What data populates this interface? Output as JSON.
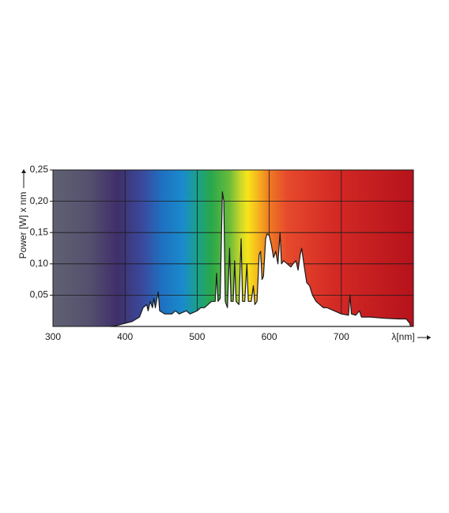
{
  "chart_data": {
    "type": "area",
    "y_label": "Power [W] x nm",
    "x_label": "λ[nm]",
    "xlim": [
      300,
      800
    ],
    "ylim": [
      0,
      0.25
    ],
    "xticks": [
      300,
      400,
      500,
      600,
      700
    ],
    "yticks": [
      {
        "value": 0.05,
        "label": "0,05"
      },
      {
        "value": 0.1,
        "label": "0,10"
      },
      {
        "value": 0.15,
        "label": "0,15"
      },
      {
        "value": 0.2,
        "label": "0,20"
      },
      {
        "value": 0.25,
        "label": "0,25"
      }
    ],
    "grid": true,
    "line_color": "#1a1a1a",
    "fill_color": "#ffffff",
    "x": [
      380,
      390,
      400,
      410,
      420,
      425,
      430,
      432,
      435,
      438,
      440,
      442,
      446,
      448,
      455,
      465,
      470,
      475,
      485,
      490,
      500,
      505,
      510,
      515,
      520,
      525,
      527,
      529,
      532,
      535,
      537,
      539,
      542,
      545,
      547,
      550,
      552,
      554,
      558,
      561,
      563,
      566,
      569,
      571,
      575,
      578,
      580,
      583,
      586,
      588,
      590,
      592,
      595,
      597,
      600,
      603,
      606,
      609,
      612,
      615,
      617,
      620,
      625,
      630,
      633,
      637,
      640,
      643,
      645,
      648,
      652,
      656,
      660,
      665,
      670,
      675,
      680,
      690,
      700,
      710,
      712,
      714,
      720,
      725,
      728,
      740,
      760,
      780,
      790,
      795,
      796
    ],
    "values": [
      0,
      0.002,
      0.005,
      0.008,
      0.015,
      0.03,
      0.035,
      0.025,
      0.04,
      0.03,
      0.045,
      0.03,
      0.055,
      0.025,
      0.02,
      0.02,
      0.025,
      0.02,
      0.025,
      0.02,
      0.025,
      0.03,
      0.03,
      0.035,
      0.04,
      0.04,
      0.085,
      0.04,
      0.045,
      0.215,
      0.2,
      0.04,
      0.03,
      0.125,
      0.04,
      0.04,
      0.105,
      0.04,
      0.035,
      0.14,
      0.04,
      0.04,
      0.1,
      0.04,
      0.04,
      0.065,
      0.035,
      0.04,
      0.115,
      0.12,
      0.075,
      0.08,
      0.14,
      0.148,
      0.145,
      0.13,
      0.11,
      0.12,
      0.1,
      0.15,
      0.1,
      0.105,
      0.1,
      0.095,
      0.1,
      0.105,
      0.09,
      0.115,
      0.125,
      0.1,
      0.07,
      0.065,
      0.05,
      0.04,
      0.035,
      0.03,
      0.03,
      0.025,
      0.02,
      0.018,
      0.05,
      0.02,
      0.018,
      0.025,
      0.015,
      0.015,
      0.013,
      0.012,
      0.012,
      0.005,
      0
    ]
  }
}
